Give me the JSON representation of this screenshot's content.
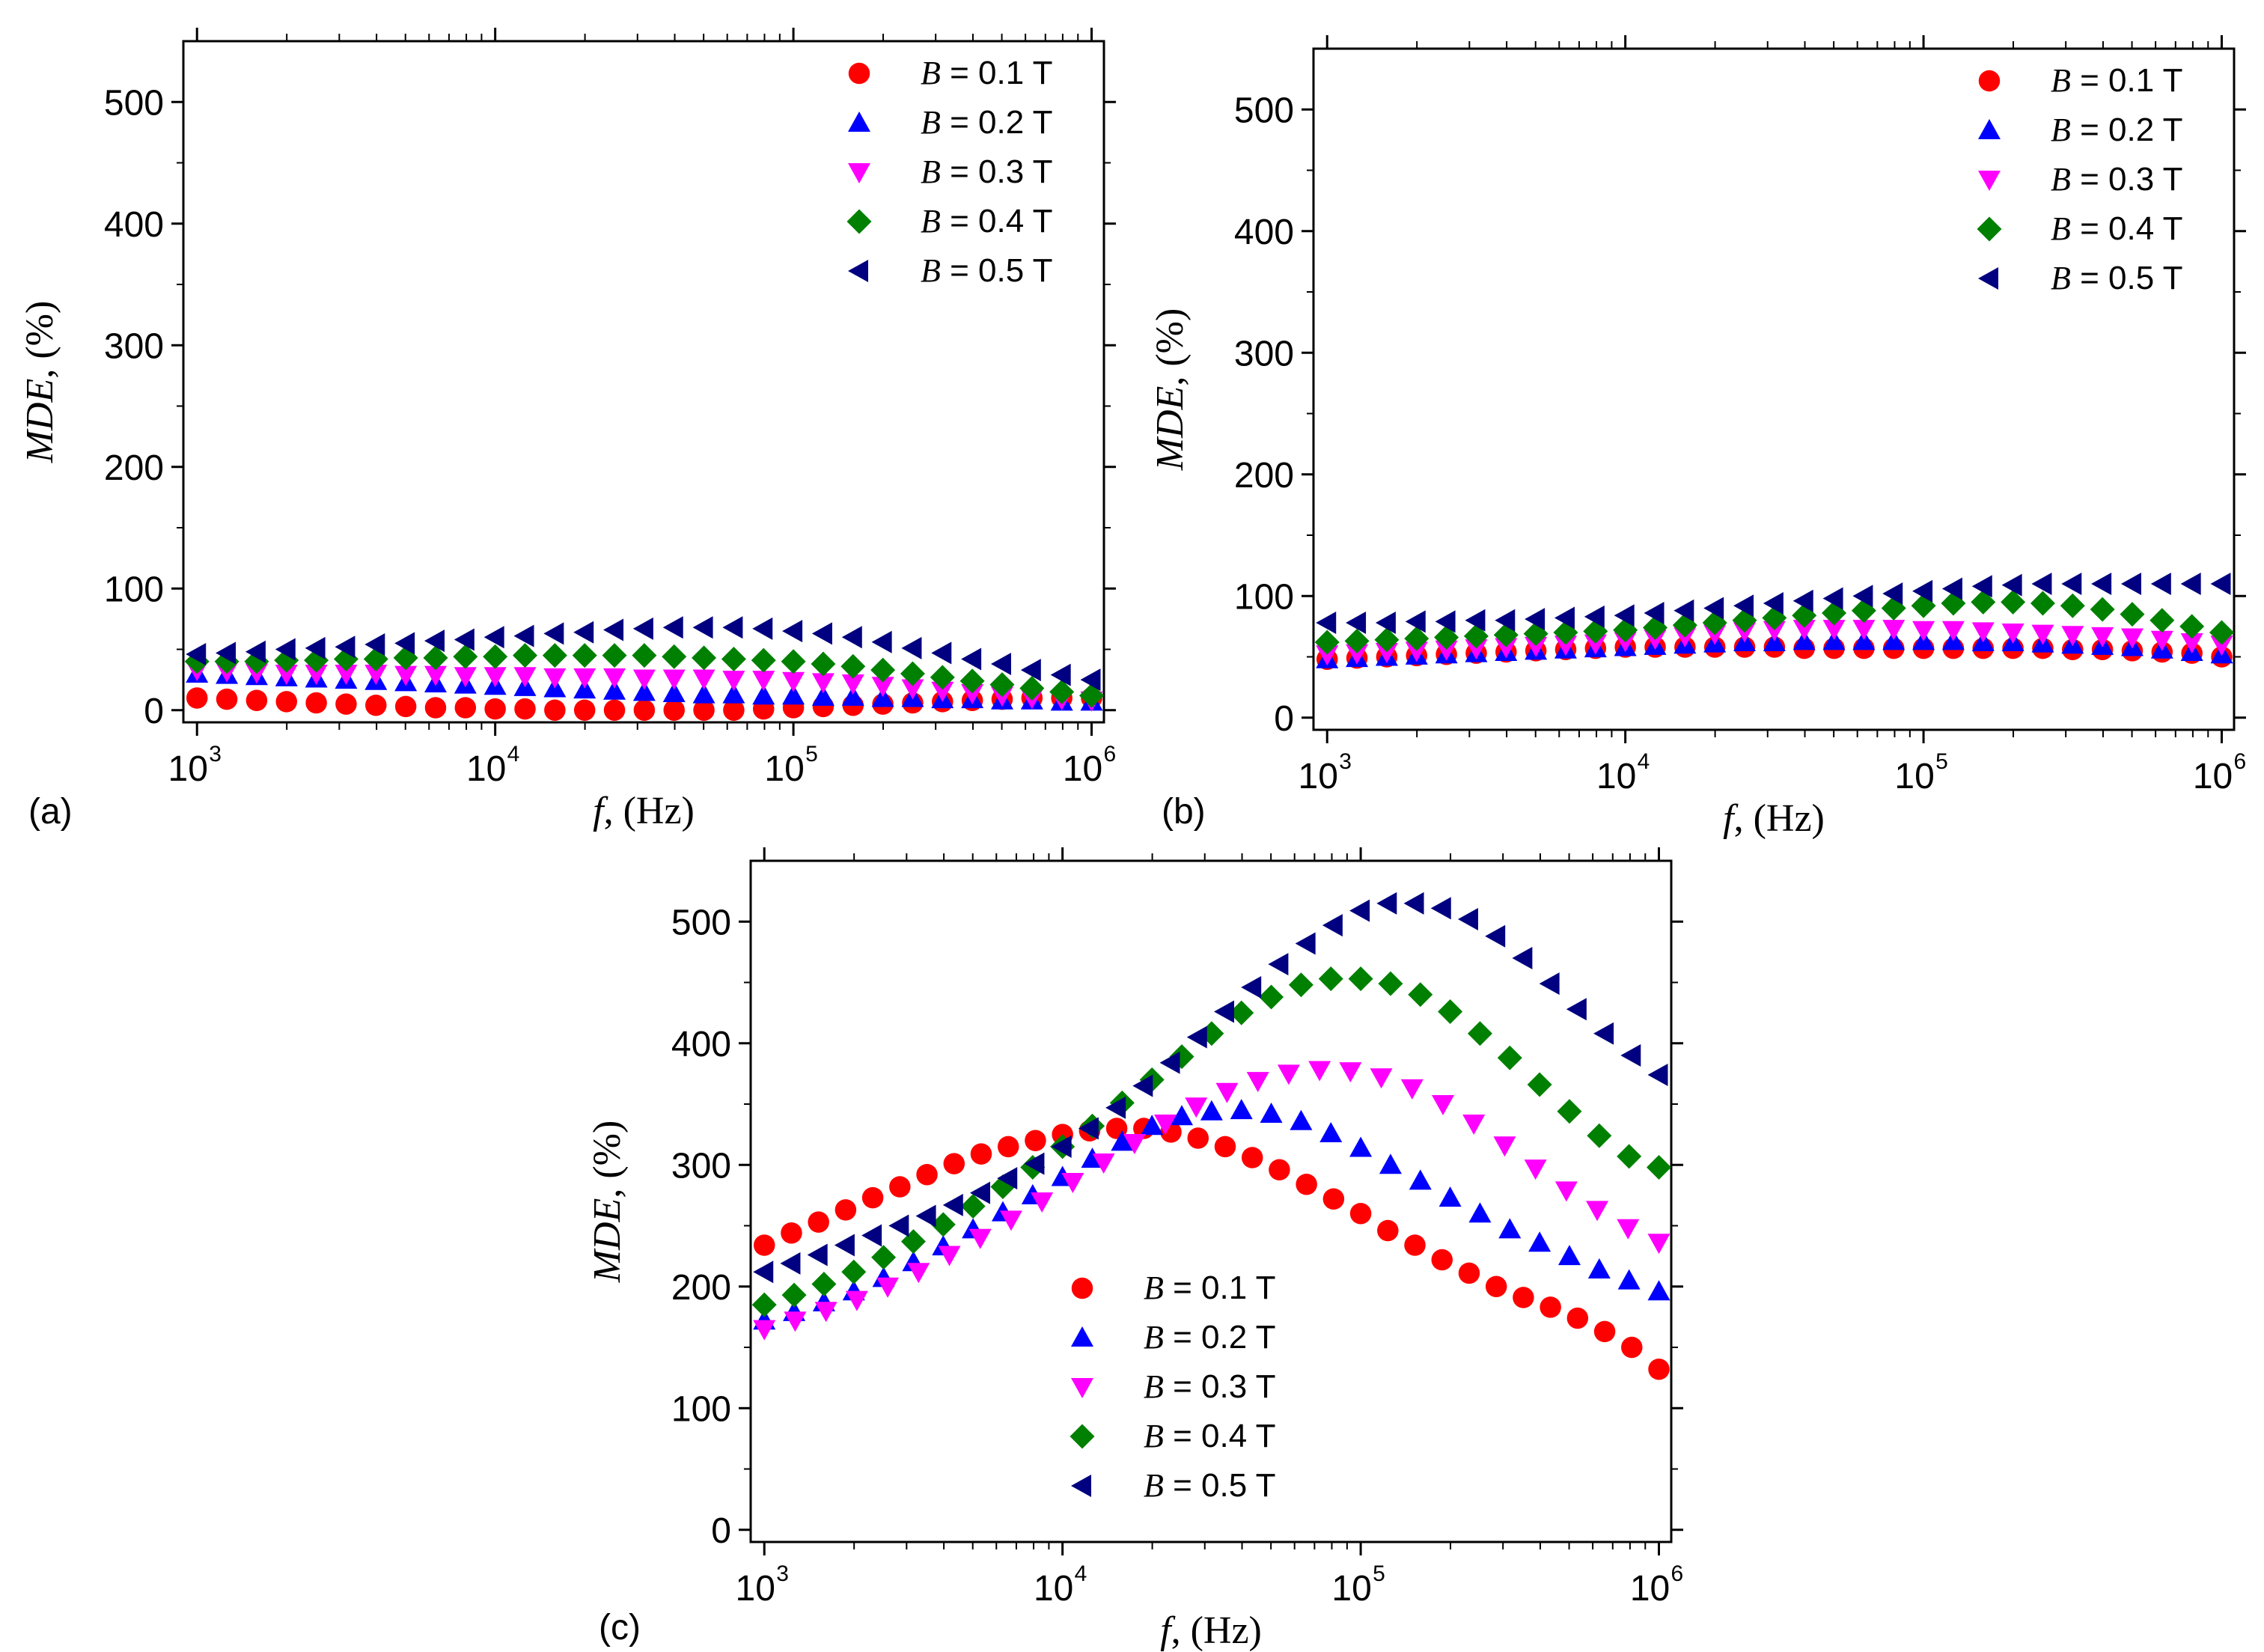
{
  "figure": {
    "series_meta": [
      {
        "var": "B",
        "value_text": " = 0.1 T",
        "color": "#ff0000",
        "marker": "circle"
      },
      {
        "var": "B",
        "value_text": " = 0.2 T",
        "color": "#0000ff",
        "marker": "triangle-up"
      },
      {
        "var": "B",
        "value_text": " = 0.3 T",
        "color": "#ff00ff",
        "marker": "triangle-down"
      },
      {
        "var": "B",
        "value_text": " = 0.4 T",
        "color": "#008000",
        "marker": "diamond"
      },
      {
        "var": "B",
        "value_text": " = 0.5 T",
        "color": "#000080",
        "marker": "triangle-left"
      }
    ]
  },
  "chart_data": [
    {
      "type": "scatter",
      "panel_label": "(a)",
      "xlabel": {
        "var": "f",
        "unit": ", (Hz)"
      },
      "ylabel": {
        "var": "MDE",
        "unit": ", (%)"
      },
      "xscale": "log",
      "xlim": [
        900,
        1100000
      ],
      "ylim": [
        -10,
        550
      ],
      "yticks": [
        0,
        100,
        200,
        300,
        400,
        500
      ],
      "xticks": [
        {
          "base": "10",
          "exp": "3"
        },
        {
          "base": "10",
          "exp": "4"
        },
        {
          "base": "10",
          "exp": "5"
        },
        {
          "base": "10",
          "exp": "6"
        }
      ],
      "legend_position": "top-right",
      "log_f_range": [
        3,
        6
      ],
      "series": [
        {
          "name": "B = 0.1 T",
          "values": [
            10,
            9,
            8,
            7,
            6,
            5,
            4,
            3,
            2,
            2,
            1,
            1,
            0,
            0,
            0,
            0,
            0,
            0,
            0,
            1,
            2,
            3,
            4,
            5,
            6,
            7,
            8,
            9,
            10,
            10,
            10
          ]
        },
        {
          "name": "B = 0.2 T",
          "values": [
            30,
            29,
            28,
            27,
            26,
            25,
            24,
            23,
            22,
            21,
            20,
            19,
            18,
            17,
            16,
            15,
            14,
            13,
            13,
            12,
            12,
            11,
            11,
            10,
            10,
            9,
            9,
            8,
            8,
            7,
            7
          ]
        },
        {
          "name": "B = 0.3 T",
          "values": [
            33,
            32,
            31,
            30,
            30,
            30,
            30,
            29,
            29,
            28,
            28,
            28,
            27,
            27,
            27,
            26,
            26,
            26,
            25,
            25,
            24,
            23,
            22,
            20,
            18,
            16,
            14,
            12,
            10,
            9,
            8
          ]
        },
        {
          "name": "B = 0.4 T",
          "values": [
            40,
            40,
            40,
            41,
            41,
            42,
            42,
            43,
            43,
            44,
            44,
            45,
            45,
            45,
            45,
            45,
            44,
            43,
            42,
            41,
            40,
            38,
            36,
            33,
            30,
            27,
            24,
            21,
            18,
            15,
            12
          ]
        },
        {
          "name": "B = 0.5 T",
          "values": [
            46,
            47,
            48,
            50,
            51,
            52,
            54,
            55,
            57,
            58,
            60,
            61,
            63,
            64,
            66,
            67,
            68,
            68,
            68,
            67,
            65,
            63,
            60,
            56,
            51,
            47,
            42,
            38,
            33,
            29,
            25
          ]
        }
      ]
    },
    {
      "type": "scatter",
      "panel_label": "(b)",
      "xlabel": {
        "var": "f",
        "unit": ", (Hz)"
      },
      "ylabel": {
        "var": "MDE",
        "unit": ", (%)"
      },
      "xscale": "log",
      "xlim": [
        900,
        1100000
      ],
      "ylim": [
        -10,
        550
      ],
      "yticks": [
        0,
        100,
        200,
        300,
        400,
        500
      ],
      "xticks": [
        {
          "base": "10",
          "exp": "3"
        },
        {
          "base": "10",
          "exp": "4"
        },
        {
          "base": "10",
          "exp": "5"
        },
        {
          "base": "10",
          "exp": "6"
        }
      ],
      "legend_position": "top-right",
      "log_f_range": [
        3,
        6
      ],
      "series": [
        {
          "name": "B = 0.1 T",
          "values": [
            48,
            49,
            50,
            51,
            52,
            53,
            54,
            55,
            56,
            57,
            58,
            58,
            58,
            58,
            58,
            58,
            57,
            57,
            57,
            57,
            57,
            57,
            57,
            57,
            57,
            56,
            56,
            55,
            54,
            53,
            50
          ]
        },
        {
          "name": "B = 0.2 T",
          "values": [
            48,
            49,
            50,
            51,
            52,
            53,
            54,
            55,
            56,
            57,
            58,
            59,
            60,
            61,
            62,
            62,
            63,
            63,
            63,
            63,
            63,
            63,
            62,
            62,
            61,
            60,
            59,
            58,
            56,
            54,
            52
          ]
        },
        {
          "name": "B = 0.3 T",
          "values": [
            52,
            53,
            54,
            55,
            56,
            57,
            58,
            59,
            60,
            61,
            63,
            65,
            67,
            69,
            71,
            72,
            73,
            73,
            73,
            73,
            72,
            72,
            71,
            70,
            69,
            68,
            67,
            66,
            64,
            62,
            60
          ]
        },
        {
          "name": "B = 0.4 T",
          "values": [
            62,
            63,
            64,
            65,
            66,
            67,
            68,
            69,
            70,
            71,
            72,
            74,
            76,
            78,
            80,
            82,
            84,
            86,
            88,
            90,
            92,
            94,
            95,
            95,
            94,
            92,
            89,
            85,
            80,
            75,
            70
          ]
        },
        {
          "name": "B = 0.5 T",
          "values": [
            78,
            78,
            78,
            79,
            79,
            80,
            80,
            81,
            82,
            83,
            84,
            86,
            88,
            90,
            92,
            94,
            96,
            98,
            100,
            102,
            104,
            106,
            108,
            109,
            110,
            110,
            110,
            110,
            110,
            110,
            110
          ]
        }
      ]
    },
    {
      "type": "scatter",
      "panel_label": "(c)",
      "xlabel": {
        "var": "f",
        "unit": ", (Hz)"
      },
      "ylabel": {
        "var": "MDE",
        "unit": ", (%)"
      },
      "xscale": "log",
      "xlim": [
        900,
        1100000
      ],
      "ylim": [
        -10,
        550
      ],
      "yticks": [
        0,
        100,
        200,
        300,
        400,
        500
      ],
      "xticks": [
        {
          "base": "10",
          "exp": "3"
        },
        {
          "base": "10",
          "exp": "4"
        },
        {
          "base": "10",
          "exp": "5"
        },
        {
          "base": "10",
          "exp": "6"
        }
      ],
      "legend_position": "bottom-center",
      "log_f_range": [
        3,
        6
      ],
      "series": [
        {
          "name": "B = 0.1 T",
          "values": [
            234,
            244,
            253,
            263,
            273,
            282,
            292,
            301,
            309,
            315,
            320,
            325,
            328,
            330,
            330,
            327,
            322,
            315,
            306,
            296,
            284,
            272,
            260,
            246,
            234,
            222,
            211,
            200,
            191,
            183,
            174,
            163,
            150,
            132
          ]
        },
        {
          "name": "B = 0.2 T",
          "values": [
            172,
            179,
            187,
            196,
            207,
            220,
            233,
            247,
            261,
            275,
            290,
            305,
            319,
            332,
            340,
            344,
            345,
            342,
            336,
            326,
            314,
            300,
            287,
            273,
            260,
            247,
            236,
            225,
            214,
            205,
            196
          ]
        },
        {
          "name": "B = 0.3 T",
          "values": [
            165,
            172,
            180,
            189,
            200,
            212,
            226,
            240,
            255,
            270,
            286,
            302,
            318,
            334,
            348,
            360,
            369,
            375,
            378,
            377,
            372,
            363,
            350,
            334,
            316,
            297,
            279,
            263,
            248,
            236
          ]
        },
        {
          "name": "B = 0.4 T",
          "values": [
            185,
            193,
            202,
            212,
            224,
            237,
            251,
            266,
            282,
            298,
            315,
            332,
            351,
            370,
            389,
            408,
            425,
            438,
            448,
            453,
            453,
            449,
            440,
            426,
            408,
            388,
            366,
            344,
            324,
            307,
            298
          ]
        },
        {
          "name": "B = 0.5 T",
          "values": [
            212,
            219,
            226,
            234,
            242,
            250,
            258,
            267,
            277,
            289,
            301,
            315,
            330,
            347,
            365,
            384,
            405,
            426,
            446,
            465,
            482,
            497,
            509,
            515,
            515,
            511,
            502,
            488,
            470,
            449,
            428,
            408,
            390,
            374
          ]
        }
      ]
    }
  ]
}
